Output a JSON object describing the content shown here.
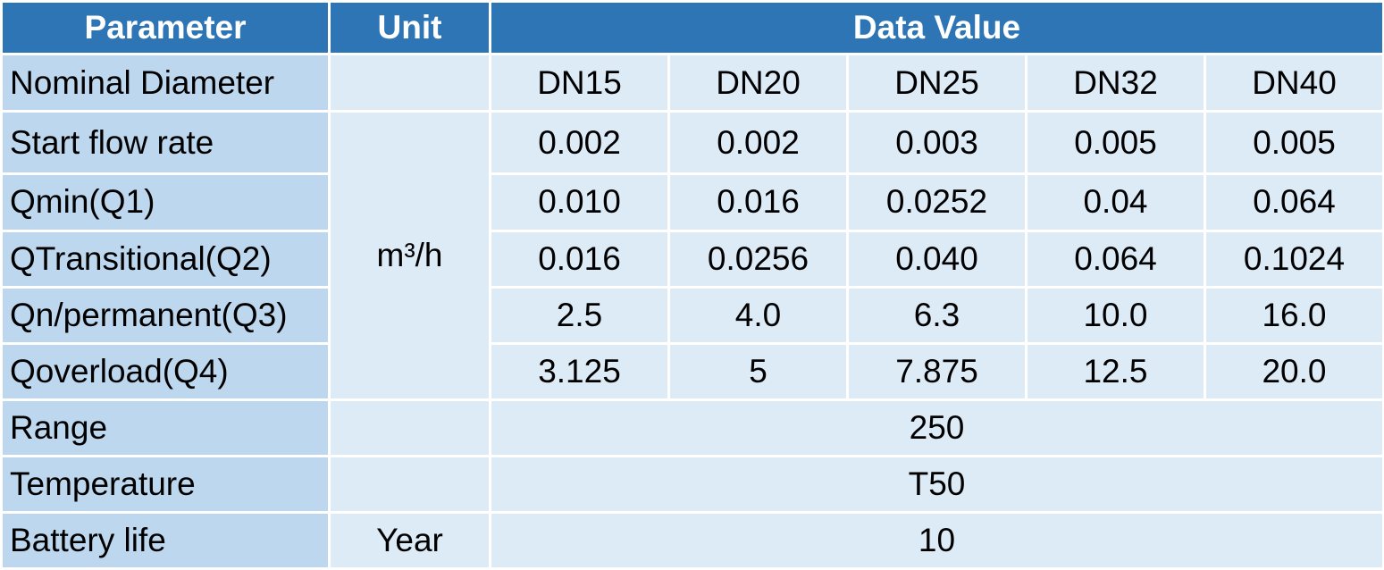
{
  "header": {
    "parameter": "Parameter",
    "unit": "Unit",
    "data_value": "Data Value"
  },
  "colors": {
    "header_bg": "#2E75B6",
    "param_bg": "#BDD7EE",
    "cell_bg": "#DDEBF7",
    "header_text": "#FFFFFF"
  },
  "rows": {
    "nominal_diameter": {
      "label": "Nominal Diameter",
      "unit": "",
      "values": [
        "DN15",
        "DN20",
        "DN25",
        "DN32",
        "DN40"
      ]
    },
    "start_flow_rate": {
      "label": "Start flow rate",
      "values": [
        "0.002",
        "0.002",
        "0.003",
        "0.005",
        "0.005"
      ]
    },
    "qmin": {
      "label": "Qmin(Q1)",
      "values": [
        "0.010",
        "0.016",
        "0.0252",
        "0.04",
        "0.064"
      ]
    },
    "qtransitional": {
      "label": "QTransitional(Q2)",
      "values": [
        "0.016",
        "0.0256",
        "0.040",
        "0.064",
        "0.1024"
      ]
    },
    "qn_permanent": {
      "label": "Qn/permanent(Q3)",
      "values": [
        "2.5",
        "4.0",
        "6.3",
        "10.0",
        "16.0"
      ]
    },
    "qoverload": {
      "label": "Qoverload(Q4)",
      "values": [
        "3.125",
        "5",
        "7.875",
        "12.5",
        "20.0"
      ]
    },
    "flow_unit": "m³/h",
    "range": {
      "label": "Range",
      "unit": "",
      "value": "250"
    },
    "temperature": {
      "label": "Temperature",
      "unit": "",
      "value": "T50"
    },
    "battery_life": {
      "label": "Battery life",
      "unit": "Year",
      "value": "10"
    }
  }
}
